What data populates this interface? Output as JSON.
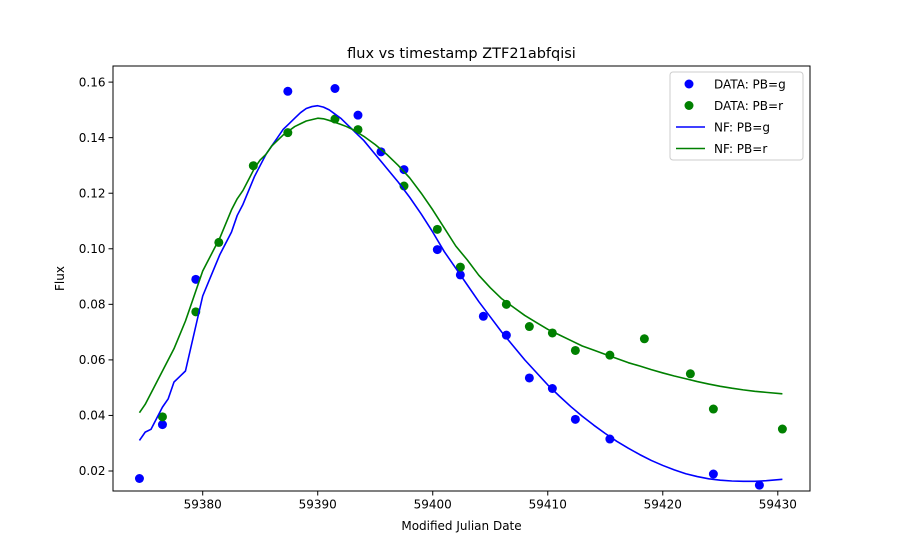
{
  "chart_data": {
    "type": "scatter",
    "title": "flux vs timestamp ZTF21abfqisi",
    "xlabel": "Modified Julian Date",
    "ylabel": "Flux",
    "xlim": [
      59372.2,
      59432.8
    ],
    "ylim": [
      0.0128,
      0.1658
    ],
    "xticks": [
      59380,
      59390,
      59400,
      59410,
      59420,
      59430
    ],
    "yticks": [
      0.02,
      0.04,
      0.06,
      0.08,
      0.1,
      0.12,
      0.14,
      0.16
    ],
    "ytick_labels": [
      "0.02",
      "0.04",
      "0.06",
      "0.08",
      "0.10",
      "0.12",
      "0.14",
      "0.16"
    ],
    "grid": false,
    "legend_position": "top-right",
    "scatter_series": [
      {
        "name": "DATA: PB=g",
        "color": "#0000ff",
        "points": [
          [
            59374.5,
            0.0173
          ],
          [
            59376.5,
            0.0367
          ],
          [
            59379.4,
            0.089
          ],
          [
            59387.4,
            0.1567
          ],
          [
            59391.5,
            0.1577
          ],
          [
            59393.5,
            0.1481
          ],
          [
            59395.5,
            0.1349
          ],
          [
            59397.5,
            0.1285
          ],
          [
            59400.4,
            0.0997
          ],
          [
            59402.4,
            0.0906
          ],
          [
            59404.4,
            0.0757
          ],
          [
            59406.4,
            0.0689
          ],
          [
            59408.4,
            0.0535
          ],
          [
            59410.4,
            0.0497
          ],
          [
            59412.4,
            0.0386
          ],
          [
            59415.4,
            0.0315
          ],
          [
            59424.4,
            0.0189
          ],
          [
            59428.4,
            0.0149
          ]
        ]
      },
      {
        "name": "DATA: PB=r",
        "color": "#008000",
        "points": [
          [
            59376.5,
            0.0395
          ],
          [
            59379.4,
            0.0773
          ],
          [
            59381.4,
            0.1023
          ],
          [
            59384.4,
            0.1299
          ],
          [
            59387.4,
            0.1418
          ],
          [
            59391.5,
            0.1467
          ],
          [
            59393.5,
            0.1429
          ],
          [
            59397.5,
            0.1226
          ],
          [
            59400.4,
            0.107
          ],
          [
            59402.4,
            0.0934
          ],
          [
            59406.4,
            0.08
          ],
          [
            59408.4,
            0.072
          ],
          [
            59410.4,
            0.0697
          ],
          [
            59412.4,
            0.0634
          ],
          [
            59415.4,
            0.0617
          ],
          [
            59418.4,
            0.0676
          ],
          [
            59422.4,
            0.055
          ],
          [
            59424.4,
            0.0423
          ],
          [
            59430.4,
            0.0351
          ]
        ]
      }
    ],
    "line_series": [
      {
        "name": "NF: PB=g",
        "color": "#0000ff",
        "points": [
          [
            59374.5,
            0.031
          ],
          [
            59375.0,
            0.034
          ],
          [
            59375.5,
            0.035
          ],
          [
            59376.0,
            0.039
          ],
          [
            59376.5,
            0.043
          ],
          [
            59377.0,
            0.046
          ],
          [
            59377.5,
            0.052
          ],
          [
            59378.0,
            0.054
          ],
          [
            59378.5,
            0.056
          ],
          [
            59379.0,
            0.065
          ],
          [
            59379.5,
            0.074
          ],
          [
            59380.0,
            0.083
          ],
          [
            59380.5,
            0.088
          ],
          [
            59381.0,
            0.093
          ],
          [
            59381.5,
            0.098
          ],
          [
            59382.0,
            0.102
          ],
          [
            59382.5,
            0.106
          ],
          [
            59383.0,
            0.112
          ],
          [
            59383.5,
            0.116
          ],
          [
            59384.0,
            0.121
          ],
          [
            59384.5,
            0.126
          ],
          [
            59385.0,
            0.13
          ],
          [
            59385.5,
            0.134
          ],
          [
            59386.0,
            0.137
          ],
          [
            59386.5,
            0.14
          ],
          [
            59387.0,
            0.143
          ],
          [
            59387.5,
            0.145
          ],
          [
            59388.0,
            0.147
          ],
          [
            59388.5,
            0.149
          ],
          [
            59389.0,
            0.1505
          ],
          [
            59389.5,
            0.1512
          ],
          [
            59390.0,
            0.1515
          ],
          [
            59390.5,
            0.151
          ],
          [
            59391.0,
            0.15
          ],
          [
            59391.5,
            0.1485
          ],
          [
            59392.0,
            0.147
          ],
          [
            59392.5,
            0.145
          ],
          [
            59393.0,
            0.143
          ],
          [
            59393.5,
            0.141
          ],
          [
            59394.0,
            0.139
          ],
          [
            59395.0,
            0.134
          ],
          [
            59396.0,
            0.129
          ],
          [
            59397.0,
            0.124
          ],
          [
            59398.0,
            0.1185
          ],
          [
            59399.0,
            0.1125
          ],
          [
            59400.0,
            0.106
          ],
          [
            59401.0,
            0.099
          ],
          [
            59402.0,
            0.093
          ],
          [
            59403.0,
            0.087
          ],
          [
            59404.0,
            0.081
          ],
          [
            59405.0,
            0.0755
          ],
          [
            59406.0,
            0.07
          ],
          [
            59407.0,
            0.065
          ],
          [
            59408.0,
            0.06
          ],
          [
            59409.0,
            0.0555
          ],
          [
            59410.0,
            0.051
          ],
          [
            59411.0,
            0.047
          ],
          [
            59412.0,
            0.0432
          ],
          [
            59413.0,
            0.0397
          ],
          [
            59414.0,
            0.0365
          ],
          [
            59415.0,
            0.0335
          ],
          [
            59416.0,
            0.0307
          ],
          [
            59417.0,
            0.0282
          ],
          [
            59418.0,
            0.0259
          ],
          [
            59419.0,
            0.0238
          ],
          [
            59420.0,
            0.022
          ],
          [
            59421.0,
            0.0204
          ],
          [
            59422.0,
            0.019
          ],
          [
            59423.0,
            0.018
          ],
          [
            59424.0,
            0.0172
          ],
          [
            59425.0,
            0.0167
          ],
          [
            59426.0,
            0.0164
          ],
          [
            59427.0,
            0.0163
          ],
          [
            59428.0,
            0.0163
          ],
          [
            59429.0,
            0.0165
          ],
          [
            59430.4,
            0.017
          ]
        ]
      },
      {
        "name": "NF: PB=r",
        "color": "#008000",
        "points": [
          [
            59374.5,
            0.041
          ],
          [
            59375.0,
            0.044
          ],
          [
            59375.5,
            0.048
          ],
          [
            59376.0,
            0.052
          ],
          [
            59376.5,
            0.056
          ],
          [
            59377.0,
            0.06
          ],
          [
            59377.5,
            0.064
          ],
          [
            59378.0,
            0.069
          ],
          [
            59378.5,
            0.074
          ],
          [
            59379.0,
            0.08
          ],
          [
            59379.5,
            0.086
          ],
          [
            59380.0,
            0.092
          ],
          [
            59380.5,
            0.096
          ],
          [
            59381.0,
            0.1
          ],
          [
            59381.5,
            0.104
          ],
          [
            59382.0,
            0.109
          ],
          [
            59382.5,
            0.114
          ],
          [
            59383.0,
            0.118
          ],
          [
            59383.5,
            0.121
          ],
          [
            59384.0,
            0.125
          ],
          [
            59384.5,
            0.129
          ],
          [
            59385.0,
            0.132
          ],
          [
            59385.5,
            0.134
          ],
          [
            59386.0,
            0.137
          ],
          [
            59386.5,
            0.139
          ],
          [
            59387.0,
            0.141
          ],
          [
            59387.5,
            0.1425
          ],
          [
            59388.0,
            0.144
          ],
          [
            59388.5,
            0.145
          ],
          [
            59389.0,
            0.146
          ],
          [
            59389.5,
            0.1465
          ],
          [
            59390.0,
            0.147
          ],
          [
            59390.5,
            0.1468
          ],
          [
            59391.0,
            0.1462
          ],
          [
            59391.5,
            0.1455
          ],
          [
            59392.0,
            0.1448
          ],
          [
            59392.5,
            0.144
          ],
          [
            59393.0,
            0.143
          ],
          [
            59394.0,
            0.1405
          ],
          [
            59395.0,
            0.1375
          ],
          [
            59396.0,
            0.134
          ],
          [
            59397.0,
            0.13
          ],
          [
            59398.0,
            0.1255
          ],
          [
            59399.0,
            0.12
          ],
          [
            59400.0,
            0.114
          ],
          [
            59401.0,
            0.1075
          ],
          [
            59402.0,
            0.101
          ],
          [
            59403.0,
            0.096
          ],
          [
            59404.0,
            0.0905
          ],
          [
            59405.0,
            0.086
          ],
          [
            59406.0,
            0.082
          ],
          [
            59407.0,
            0.079
          ],
          [
            59408.0,
            0.076
          ],
          [
            59409.0,
            0.0735
          ],
          [
            59410.0,
            0.071
          ],
          [
            59411.0,
            0.069
          ],
          [
            59412.0,
            0.067
          ],
          [
            59413.0,
            0.065
          ],
          [
            59414.0,
            0.0635
          ],
          [
            59415.0,
            0.062
          ],
          [
            59416.0,
            0.0605
          ],
          [
            59417.0,
            0.059
          ],
          [
            59418.0,
            0.0578
          ],
          [
            59419.0,
            0.0565
          ],
          [
            59420.0,
            0.0553
          ],
          [
            59421.0,
            0.0542
          ],
          [
            59422.0,
            0.0532
          ],
          [
            59423.0,
            0.0522
          ],
          [
            59424.0,
            0.0513
          ],
          [
            59425.0,
            0.0505
          ],
          [
            59426.0,
            0.0498
          ],
          [
            59427.0,
            0.0492
          ],
          [
            59428.0,
            0.0487
          ],
          [
            59429.0,
            0.0483
          ],
          [
            59430.4,
            0.0478
          ]
        ]
      }
    ]
  }
}
